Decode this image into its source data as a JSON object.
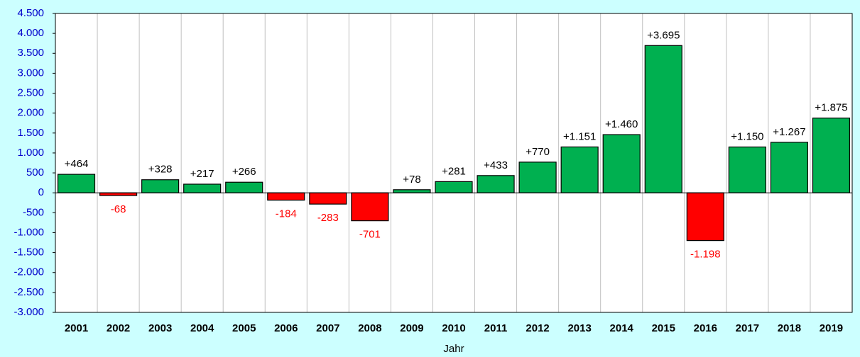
{
  "chart_data": {
    "type": "bar",
    "x_label": "Jahr",
    "categories": [
      "2001",
      "2002",
      "2003",
      "2004",
      "2005",
      "2006",
      "2007",
      "2008",
      "2009",
      "2010",
      "2011",
      "2012",
      "2013",
      "2014",
      "2015",
      "2016",
      "2017",
      "2018",
      "2019"
    ],
    "values": [
      464,
      -68,
      328,
      217,
      266,
      -184,
      -283,
      -701,
      78,
      281,
      433,
      770,
      1151,
      1460,
      3695,
      -1198,
      1150,
      1267,
      1875
    ],
    "value_labels": [
      "+464",
      "-68",
      "+328",
      "+217",
      "+266",
      "-184",
      "-283",
      "-701",
      "+78",
      "+281",
      "+433",
      "+770",
      "+1.151",
      "+1.460",
      "+3.695",
      "-1.198",
      "+1.150",
      "+1.267",
      "+1.875"
    ],
    "color": "#00b050",
    "negative_color": "#ff0000",
    "ylim": [
      -3000,
      4500
    ],
    "yticks": [
      {
        "value": -3000,
        "label": "-3.000"
      },
      {
        "value": -2500,
        "label": "-2.500"
      },
      {
        "value": -2000,
        "label": "-2.000"
      },
      {
        "value": -1500,
        "label": "-1.500"
      },
      {
        "value": -1000,
        "label": "-1.000"
      },
      {
        "value": -500,
        "label": "-500"
      },
      {
        "value": 0,
        "label": "0"
      },
      {
        "value": 500,
        "label": "500"
      },
      {
        "value": 1000,
        "label": "1.000"
      },
      {
        "value": 1500,
        "label": "1.500"
      },
      {
        "value": 2000,
        "label": "2.000"
      },
      {
        "value": 2500,
        "label": "2.500"
      },
      {
        "value": 3000,
        "label": "3.000"
      },
      {
        "value": 3500,
        "label": "3.500"
      },
      {
        "value": 4000,
        "label": "4.000"
      },
      {
        "value": 4500,
        "label": "4.500"
      }
    ],
    "grid": false
  }
}
